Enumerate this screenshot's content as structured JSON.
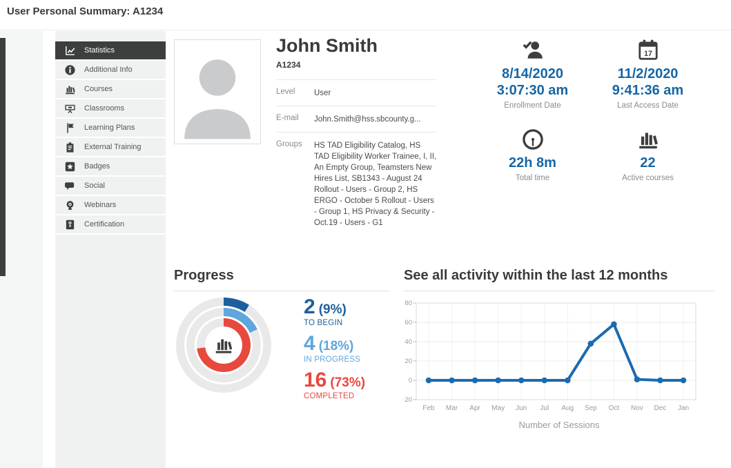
{
  "header": {
    "title": "User Personal Summary: A1234"
  },
  "sidebar": {
    "items": [
      {
        "label": "Statistics",
        "active": true
      },
      {
        "label": "Additional Info"
      },
      {
        "label": "Courses"
      },
      {
        "label": "Classrooms"
      },
      {
        "label": "Learning Plans"
      },
      {
        "label": "External Training"
      },
      {
        "label": "Badges"
      },
      {
        "label": "Social"
      },
      {
        "label": "Webinars"
      },
      {
        "label": "Certification"
      }
    ]
  },
  "profile": {
    "name": "John Smith",
    "user_id": "A1234",
    "fields": [
      {
        "label": "Level",
        "value": "User"
      },
      {
        "label": "E-mail",
        "value": "John.Smith@hss.sbcounty.g..."
      },
      {
        "label": "Groups",
        "value": "HS TAD Eligibility Catalog, HS TAD Eligibility Worker Trainee, I, II, An Empty Group, Teamsters New Hires List, SB1343 - August 24 Rollout - Users - Group 2, HS ERGO - October 5 Rollout - Users - Group 1, HS Privacy & Security - Oct.19 - Users - G1"
      }
    ]
  },
  "stats": [
    {
      "icon": "user-check-icon",
      "line1": "8/14/2020",
      "line2": "3:07:30 am",
      "label": "Enrollment Date"
    },
    {
      "icon": "calendar-icon",
      "calendar_day": "17",
      "line1": "11/2/2020",
      "line2": "9:41:36 am",
      "label": "Last Access Date"
    },
    {
      "icon": "clock-icon",
      "line1": "22h 8m",
      "line2": "",
      "label": "Total time"
    },
    {
      "icon": "courses-icon",
      "line1": "22",
      "line2": "",
      "label": "Active courses"
    }
  ],
  "progress": {
    "title": "Progress",
    "items": [
      {
        "count": "2",
        "percent": "(9%)",
        "label": "TO BEGIN",
        "value": 9,
        "color": "#1d5f9e"
      },
      {
        "count": "4",
        "percent": "(18%)",
        "label": "IN PROGRESS",
        "value": 18,
        "color": "#5ea6dc"
      },
      {
        "count": "16",
        "percent": "(73%)",
        "label": "COMPLETED",
        "value": 73,
        "color": "#e8483d"
      }
    ]
  },
  "activity": {
    "title": "See all activity within the last 12 months",
    "caption": "Number of Sessions"
  },
  "chart_data": {
    "type": "line",
    "title": "See all activity within the last 12 months",
    "x": [
      "Feb",
      "Mar",
      "Apr",
      "May",
      "Jun",
      "Jul",
      "Aug",
      "Sep",
      "Oct",
      "Nov",
      "Dec",
      "Jan"
    ],
    "series": [
      {
        "name": "Number of Sessions",
        "values": [
          0,
          0,
          0,
          0,
          0,
          0,
          0,
          38,
          58,
          1,
          0,
          0
        ]
      }
    ],
    "xlabel": "Number of Sessions",
    "ylabel": "",
    "ylim": [
      -20,
      80
    ],
    "yticks": [
      -20,
      0,
      20,
      40,
      60,
      80
    ],
    "grid": true,
    "legend_position": "none",
    "line_color": "#1b6bb0"
  },
  "colors": {
    "accent_blue": "#1566a5",
    "dark_blue": "#1d5f9e",
    "light_blue": "#5ea6dc",
    "red": "#e8483d",
    "track_gray": "#e9e9e9",
    "line_blue": "#1b6bb0",
    "sidebar_dark": "#3d3e3e"
  }
}
